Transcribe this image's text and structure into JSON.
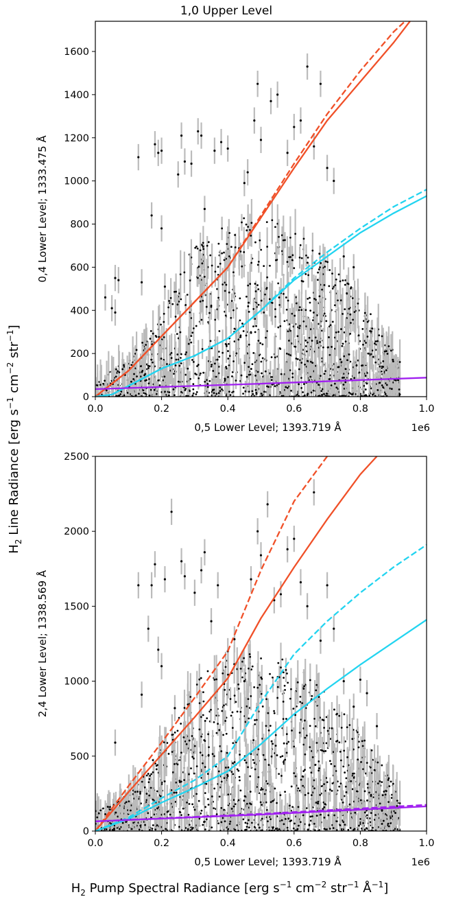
{
  "figure": {
    "title": "1,0 Upper Level",
    "shared_ylabel_main": "H",
    "shared_ylabel_sub": "2",
    "shared_ylabel_rest": " Line Radiance [erg s",
    "shared_ylabel_exp1": "−1",
    "shared_ylabel_mid": " cm",
    "shared_ylabel_exp2": "−2",
    "shared_ylabel_mid2": " str",
    "shared_ylabel_exp3": "−1",
    "shared_ylabel_end": "]",
    "shared_xlabel_main": "H",
    "shared_xlabel_sub": "2",
    "shared_xlabel_rest": " Pump Spectral Radiance [erg s",
    "shared_xlabel_exp1": "−1",
    "shared_xlabel_mid": " cm",
    "shared_xlabel_exp2": "−2",
    "shared_xlabel_mid2": " str",
    "shared_xlabel_exp3": "−1",
    "shared_xlabel_mid3": " Å",
    "shared_xlabel_exp4": "−1",
    "shared_xlabel_end": "]"
  },
  "colors": {
    "orange": "#f05028",
    "cyan": "#22d4f0",
    "purple": "#a020f0",
    "points": "#000000",
    "errorbars": "#bbbbbb"
  },
  "chart_data": [
    {
      "type": "scatter",
      "ylabel": "0,4  Lower Level; 1333.475 Å",
      "xlabel": "0,5 Lower Level; 1393.719 Å",
      "x_offset_label": "1e6",
      "xlim": [
        0.0,
        1.0
      ],
      "ylim": [
        0,
        1740
      ],
      "xticks": [
        "0.0",
        "0.2",
        "0.4",
        "0.6",
        "0.8",
        "1.0"
      ],
      "yticks": [
        "0",
        "200",
        "400",
        "600",
        "800",
        "1000",
        "1200",
        "1400",
        "1600"
      ],
      "series": [
        {
          "color": "orange",
          "style": "solid",
          "x": [
            0.0,
            0.1,
            0.2,
            0.3,
            0.4,
            0.5,
            0.6,
            0.7,
            0.8,
            0.9,
            0.95
          ],
          "y": [
            0,
            120,
            280,
            440,
            600,
            830,
            1060,
            1280,
            1460,
            1640,
            1740
          ]
        },
        {
          "color": "orange",
          "style": "dashed",
          "x": [
            0.0,
            0.1,
            0.2,
            0.3,
            0.4,
            0.5,
            0.6,
            0.7,
            0.8,
            0.9,
            0.935
          ],
          "y": [
            0,
            120,
            280,
            440,
            600,
            840,
            1080,
            1310,
            1510,
            1690,
            1740
          ]
        },
        {
          "color": "cyan",
          "style": "solid",
          "x": [
            0.0,
            0.05,
            0.1,
            0.2,
            0.3,
            0.4,
            0.5,
            0.6,
            0.7,
            0.8,
            0.9,
            1.0
          ],
          "y": [
            0,
            10,
            50,
            130,
            190,
            270,
            400,
            540,
            650,
            760,
            850,
            930
          ]
        },
        {
          "color": "cyan",
          "style": "dashed",
          "x": [
            0.0,
            0.05,
            0.1,
            0.2,
            0.3,
            0.4,
            0.5,
            0.6,
            0.7,
            0.8,
            0.9,
            1.0
          ],
          "y": [
            0,
            10,
            50,
            130,
            190,
            270,
            400,
            550,
            670,
            780,
            880,
            960
          ]
        },
        {
          "color": "purple",
          "style": "solid",
          "x": [
            0.0,
            0.5,
            1.0
          ],
          "y": [
            35,
            60,
            88
          ]
        }
      ],
      "outliers": [
        [
          0.03,
          460
        ],
        [
          0.05,
          410
        ],
        [
          0.06,
          390
        ],
        [
          0.06,
          550
        ],
        [
          0.07,
          540
        ],
        [
          0.13,
          1110
        ],
        [
          0.14,
          530
        ],
        [
          0.17,
          840
        ],
        [
          0.18,
          1170
        ],
        [
          0.19,
          1130
        ],
        [
          0.2,
          780
        ],
        [
          0.2,
          1140
        ],
        [
          0.21,
          510
        ],
        [
          0.25,
          1030
        ],
        [
          0.26,
          1210
        ],
        [
          0.27,
          1090
        ],
        [
          0.29,
          1080
        ],
        [
          0.31,
          1230
        ],
        [
          0.32,
          1210
        ],
        [
          0.33,
          870
        ],
        [
          0.36,
          1140
        ],
        [
          0.38,
          1180
        ],
        [
          0.4,
          1150
        ],
        [
          0.45,
          990
        ],
        [
          0.46,
          1040
        ],
        [
          0.48,
          1280
        ],
        [
          0.49,
          1450
        ],
        [
          0.5,
          1190
        ],
        [
          0.53,
          1370
        ],
        [
          0.55,
          1400
        ],
        [
          0.58,
          1130
        ],
        [
          0.6,
          1250
        ],
        [
          0.62,
          1280
        ],
        [
          0.64,
          1530
        ],
        [
          0.66,
          1160
        ],
        [
          0.68,
          1450
        ],
        [
          0.7,
          1060
        ],
        [
          0.72,
          1000
        ],
        [
          0.75,
          650
        ],
        [
          0.78,
          600
        ]
      ]
    },
    {
      "type": "scatter",
      "ylabel": "2,4 Lower Level; 1338.569 Å",
      "xlabel": "0,5 Lower Level; 1393.719 Å",
      "x_offset_label": "1e6",
      "xlim": [
        0.0,
        1.0
      ],
      "ylim": [
        0,
        2500
      ],
      "xticks": [
        "0.0",
        "0.2",
        "0.4",
        "0.6",
        "0.8",
        "1.0"
      ],
      "yticks": [
        "0",
        "500",
        "1000",
        "1500",
        "2000",
        "2500"
      ],
      "series": [
        {
          "color": "orange",
          "style": "solid",
          "x": [
            0.0,
            0.1,
            0.2,
            0.3,
            0.4,
            0.5,
            0.6,
            0.7,
            0.8,
            0.85
          ],
          "y": [
            0,
            260,
            510,
            760,
            1020,
            1420,
            1760,
            2080,
            2380,
            2500
          ]
        },
        {
          "color": "orange",
          "style": "dashed",
          "x": [
            0.0,
            0.1,
            0.2,
            0.3,
            0.4,
            0.5,
            0.6,
            0.7
          ],
          "y": [
            0,
            300,
            590,
            890,
            1200,
            1740,
            2200,
            2500
          ]
        },
        {
          "color": "cyan",
          "style": "solid",
          "x": [
            0.0,
            0.1,
            0.2,
            0.3,
            0.4,
            0.5,
            0.6,
            0.7,
            0.8,
            0.9,
            1.0
          ],
          "y": [
            0,
            80,
            190,
            290,
            400,
            580,
            780,
            950,
            1110,
            1260,
            1410
          ]
        },
        {
          "color": "cyan",
          "style": "dashed",
          "x": [
            0.0,
            0.1,
            0.2,
            0.3,
            0.4,
            0.5,
            0.6,
            0.7,
            0.8,
            0.9,
            1.0
          ],
          "y": [
            0,
            90,
            220,
            340,
            500,
            860,
            1180,
            1400,
            1590,
            1760,
            1910
          ]
        },
        {
          "color": "purple",
          "style": "solid",
          "x": [
            0.0,
            0.5,
            1.0
          ],
          "y": [
            65,
            110,
            165
          ]
        },
        {
          "color": "purple",
          "style": "dashed",
          "x": [
            0.0,
            0.5,
            1.0
          ],
          "y": [
            65,
            115,
            175
          ]
        }
      ],
      "outliers": [
        [
          0.06,
          590
        ],
        [
          0.13,
          1640
        ],
        [
          0.14,
          910
        ],
        [
          0.16,
          1350
        ],
        [
          0.17,
          1640
        ],
        [
          0.18,
          1780
        ],
        [
          0.19,
          1210
        ],
        [
          0.2,
          1100
        ],
        [
          0.21,
          1680
        ],
        [
          0.23,
          2130
        ],
        [
          0.24,
          820
        ],
        [
          0.26,
          1800
        ],
        [
          0.27,
          1700
        ],
        [
          0.3,
          1590
        ],
        [
          0.32,
          1740
        ],
        [
          0.33,
          1860
        ],
        [
          0.35,
          1400
        ],
        [
          0.37,
          1640
        ],
        [
          0.4,
          1200
        ],
        [
          0.42,
          1280
        ],
        [
          0.45,
          1000
        ],
        [
          0.47,
          1680
        ],
        [
          0.49,
          2000
        ],
        [
          0.5,
          1840
        ],
        [
          0.52,
          2180
        ],
        [
          0.54,
          1540
        ],
        [
          0.56,
          1580
        ],
        [
          0.58,
          1880
        ],
        [
          0.6,
          1950
        ],
        [
          0.62,
          1660
        ],
        [
          0.64,
          1500
        ],
        [
          0.66,
          2260
        ],
        [
          0.68,
          1270
        ],
        [
          0.7,
          1640
        ],
        [
          0.72,
          1350
        ],
        [
          0.75,
          1000
        ],
        [
          0.78,
          830
        ],
        [
          0.8,
          1010
        ],
        [
          0.82,
          920
        ],
        [
          0.85,
          700
        ]
      ]
    }
  ]
}
